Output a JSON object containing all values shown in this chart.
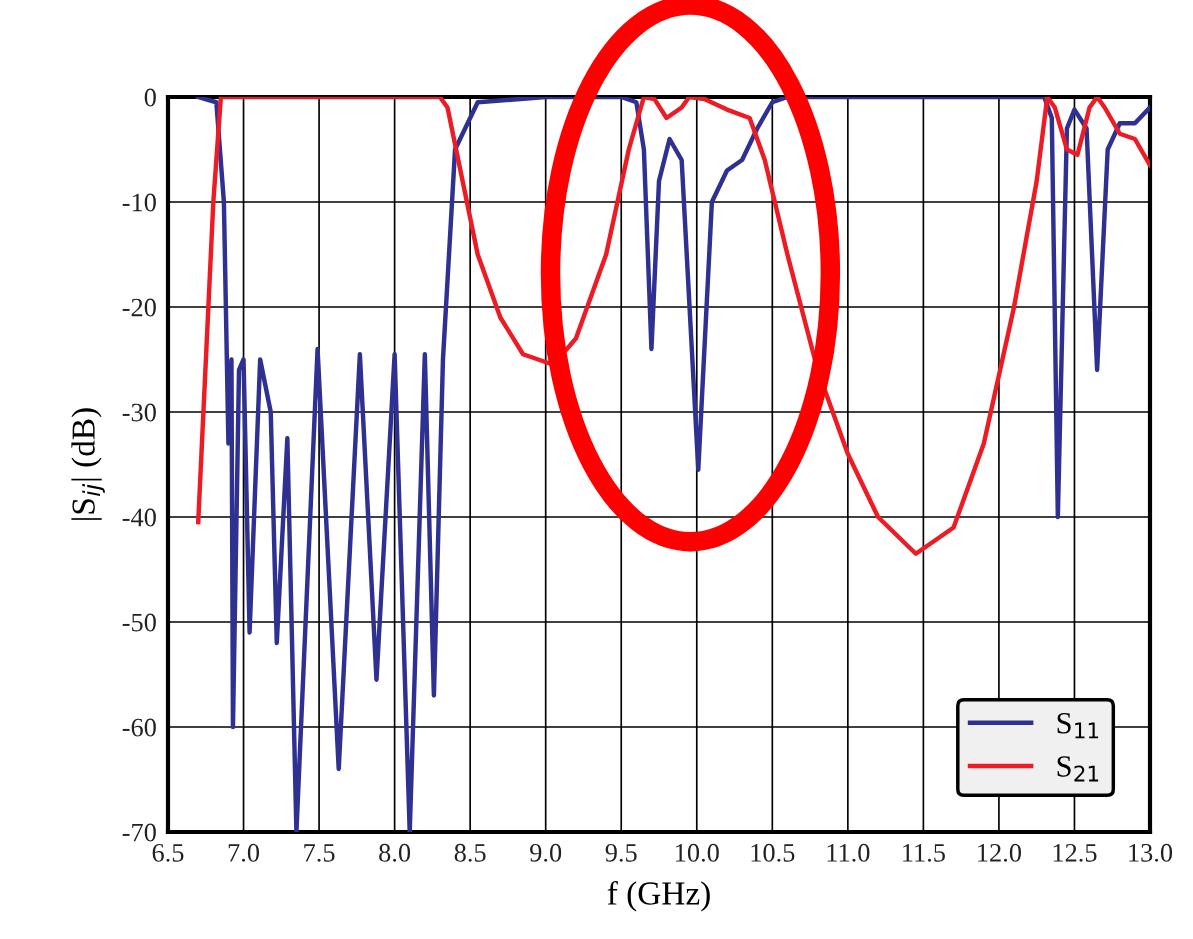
{
  "chart_data": {
    "type": "line",
    "xlabel": "f (GHz)",
    "ylabel": "|S$_{ij}$| (dB)",
    "xlim": [
      6.5,
      13.0
    ],
    "ylim": [
      -70,
      0
    ],
    "xticks": [
      {
        "value": 6.5,
        "label": "6.5"
      },
      {
        "value": 7.0,
        "label": "7.0"
      },
      {
        "value": 7.5,
        "label": "7.5"
      },
      {
        "value": 8.0,
        "label": "8.0"
      },
      {
        "value": 8.5,
        "label": "8.5"
      },
      {
        "value": 9.0,
        "label": "9.0"
      },
      {
        "value": 9.5,
        "label": "9.5"
      },
      {
        "value": 10.0,
        "label": "10.0"
      },
      {
        "value": 10.5,
        "label": "10.5"
      },
      {
        "value": 11.0,
        "label": "11.0"
      },
      {
        "value": 11.5,
        "label": "11.5"
      },
      {
        "value": 12.0,
        "label": "12.0"
      },
      {
        "value": 12.5,
        "label": "12.5"
      },
      {
        "value": 13.0,
        "label": "13.0"
      }
    ],
    "yticks": [
      -70,
      -60,
      -50,
      -40,
      -30,
      -20,
      -10,
      0
    ],
    "grid": true,
    "legend": "bottom right",
    "marker": "none",
    "line_style": "solid",
    "series": [
      {
        "name": "S$_{11}$",
        "color": "#2e3192",
        "x": [
          6.7,
          6.82,
          6.87,
          6.9,
          6.92,
          6.93,
          6.97,
          7.0,
          7.04,
          7.11,
          7.18,
          7.22,
          7.29,
          7.35,
          7.49,
          7.63,
          7.77,
          7.88,
          8.0,
          8.1,
          8.2,
          8.26,
          8.32,
          8.4,
          8.55,
          9.0,
          9.5,
          9.6,
          9.65,
          9.7,
          9.75,
          9.82,
          9.9,
          10.01,
          10.1,
          10.2,
          10.3,
          10.4,
          10.5,
          10.6,
          12.3,
          12.35,
          12.39,
          12.45,
          12.5,
          12.58,
          12.65,
          12.72,
          12.8,
          12.9,
          13.0
        ],
        "values": [
          0,
          -0.5,
          -10,
          -33,
          -25,
          -60,
          -26,
          -25,
          -51,
          -25,
          -30,
          -52,
          -32.5,
          -70,
          -24,
          -64,
          -24.5,
          -55.5,
          -24.5,
          -70,
          -24.5,
          -57,
          -25,
          -5,
          -0.5,
          0,
          0,
          -0.5,
          -5,
          -24,
          -8,
          -4,
          -6,
          -35.5,
          -10,
          -7,
          -6,
          -3,
          -0.5,
          0,
          0,
          -2,
          -40,
          -3,
          -1.2,
          -3,
          -26,
          -5,
          -2.5,
          -2.5,
          -1
        ]
      },
      {
        "name": "S$_{21}$",
        "color": "#ed1c24",
        "x": [
          6.7,
          6.8,
          6.85,
          8.3,
          8.35,
          8.45,
          8.55,
          8.7,
          8.85,
          9.05,
          9.2,
          9.4,
          9.55,
          9.65,
          9.72,
          9.8,
          9.9,
          9.95,
          10.05,
          10.2,
          10.35,
          10.45,
          10.6,
          10.8,
          11.0,
          11.2,
          11.45,
          11.7,
          11.9,
          12.1,
          12.25,
          12.32,
          12.37,
          12.45,
          12.52,
          12.6,
          12.65,
          12.7,
          12.8,
          12.9,
          13.0
        ],
        "values": [
          -40.5,
          -10,
          0,
          0,
          -1,
          -8,
          -15,
          -21,
          -24.5,
          -25.5,
          -23,
          -15,
          -5,
          0,
          -0.2,
          -2,
          -1,
          0,
          -0.2,
          -1.2,
          -2,
          -6,
          -15,
          -26,
          -34,
          -40,
          -43.5,
          -41,
          -33,
          -20,
          -8,
          0,
          -1,
          -5,
          -5.5,
          -1,
          0,
          -1,
          -3.5,
          -4,
          -6.5
        ]
      }
    ]
  }
}
